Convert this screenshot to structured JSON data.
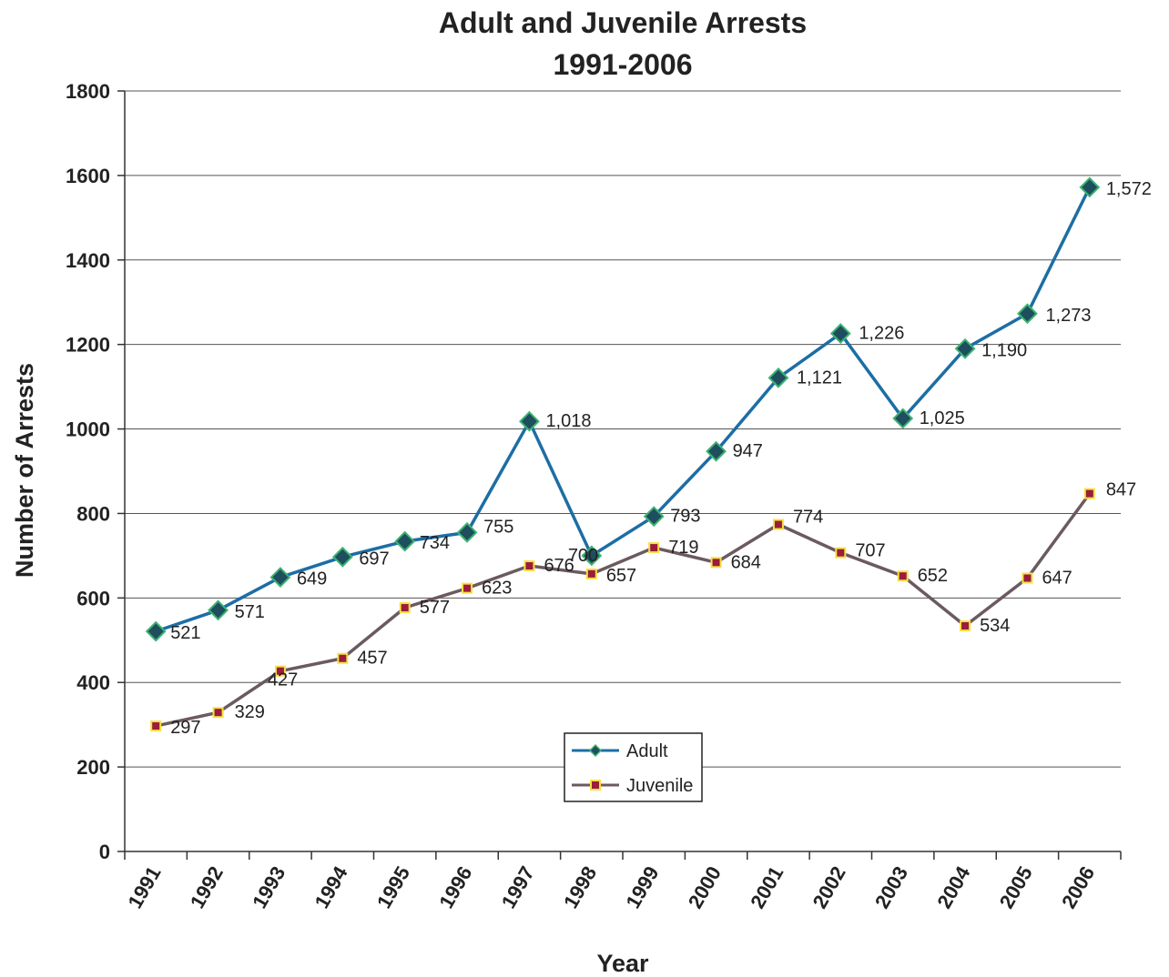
{
  "chart_data": {
    "type": "line",
    "title": "Adult and Juvenile Arrests",
    "subtitle": "1991-2006",
    "xlabel": "Year",
    "ylabel": "Number of Arrests",
    "ylim": [
      0,
      1800
    ],
    "yticks": [
      0,
      200,
      400,
      600,
      800,
      1000,
      1200,
      1400,
      1600,
      1800
    ],
    "categories": [
      "1991",
      "1992",
      "1993",
      "1994",
      "1995",
      "1996",
      "1997",
      "1998",
      "1999",
      "2000",
      "2001",
      "2002",
      "2003",
      "2004",
      "2005",
      "2006"
    ],
    "grid": true,
    "legend_position": "bottom-center",
    "series": [
      {
        "name": "Adult",
        "values": [
          521,
          571,
          649,
          697,
          734,
          755,
          1018,
          700,
          793,
          947,
          1121,
          1226,
          1025,
          1190,
          1273,
          1572
        ],
        "labels": [
          "521",
          "571",
          "649",
          "697",
          "734",
          "755",
          "1,018",
          "700",
          "793",
          "947",
          "1,121",
          "1,226",
          "1,025",
          "1,190",
          "1,273",
          "1,572"
        ],
        "line_color": "#1c6ea4",
        "marker": "diamond",
        "marker_fill": "#1f4e5f",
        "marker_edge": "#3cb371"
      },
      {
        "name": "Juvenile",
        "values": [
          297,
          329,
          427,
          457,
          577,
          623,
          676,
          657,
          719,
          684,
          774,
          707,
          652,
          534,
          647,
          847
        ],
        "labels": [
          "297",
          "329",
          "427",
          "457",
          "577",
          "623",
          "676",
          "657",
          "719",
          "684",
          "774",
          "707",
          "652",
          "534",
          "647",
          "847"
        ],
        "line_color": "#6b5a5e",
        "marker": "square",
        "marker_fill": "#9b1c3c",
        "marker_edge": "#f5e142"
      }
    ]
  }
}
